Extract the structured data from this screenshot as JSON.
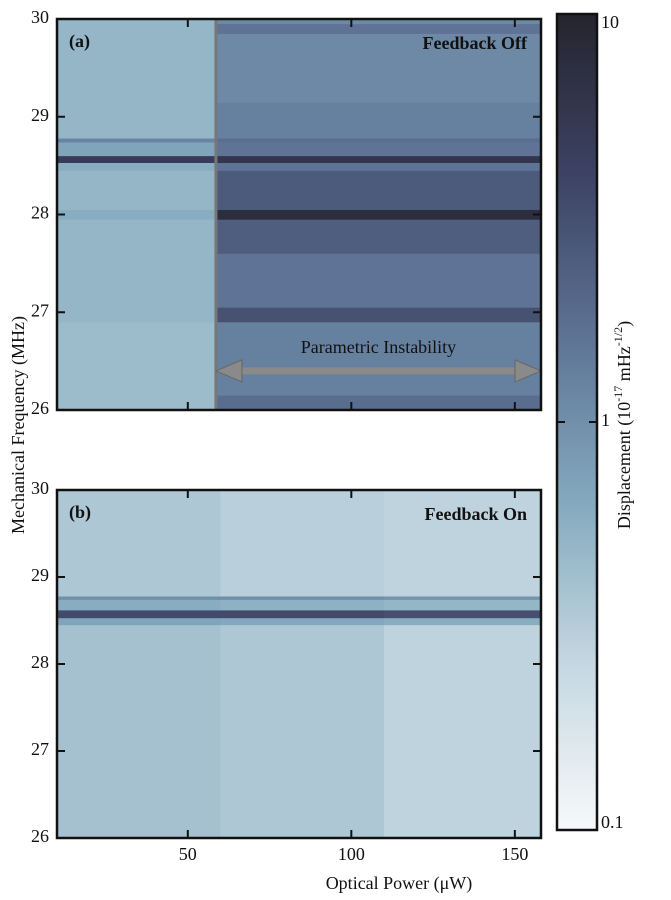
{
  "chart_data": {
    "type": "heatmap",
    "xlabel": "Optical Power (μW)",
    "ylabel": "Mechanical Frequency (MHz)",
    "xlim": [
      10,
      158
    ],
    "xticks": [
      50,
      100,
      150
    ],
    "ylim": [
      26,
      30
    ],
    "yticks": [
      26,
      27,
      28,
      29,
      30
    ],
    "colorbar": {
      "scale": "log",
      "clim": [
        0.1,
        10
      ],
      "ticks": [
        0.1,
        1,
        10
      ],
      "label": [
        "Displacement (10",
        "-17",
        " mHz",
        "-1/2",
        ")"
      ],
      "colormap": [
        "#f7f9fa",
        "#c6d8e2",
        "#84aabe",
        "#5e7496",
        "#3d4364",
        "#25242e"
      ]
    },
    "panels": [
      {
        "label": "(a)",
        "title": "Feedback Off",
        "marker_x": 58.6,
        "annotation": {
          "text": "Parametric Instability",
          "x_range": [
            58.6,
            158
          ],
          "y": 26.4
        },
        "x_edges": [
          10,
          58.6,
          158
        ],
        "y_edges": [
          26,
          26.15,
          26.9,
          27.05,
          27.6,
          27.95,
          28.05,
          28.45,
          28.53,
          28.6,
          28.74,
          28.78,
          29.15,
          29.85,
          29.95,
          30
        ],
        "z": [
          [
            0.45,
            1.8
          ],
          [
            0.45,
            1.3
          ],
          [
            0.5,
            3.0
          ],
          [
            0.5,
            1.6
          ],
          [
            0.5,
            2.4
          ],
          [
            0.6,
            7.5
          ],
          [
            0.5,
            2.6
          ],
          [
            0.6,
            1.6
          ],
          [
            5.0,
            6.0
          ],
          [
            0.7,
            1.6
          ],
          [
            1.2,
            1.8
          ],
          [
            0.5,
            1.3
          ],
          [
            0.5,
            1.1
          ],
          [
            0.5,
            1.6
          ],
          [
            0.5,
            1.1
          ]
        ]
      },
      {
        "label": "(b)",
        "title": "Feedback On",
        "x_edges": [
          10,
          60,
          110,
          158
        ],
        "y_edges": [
          26,
          28.45,
          28.53,
          28.62,
          28.74,
          28.78,
          30
        ],
        "z": [
          [
            0.4,
            0.35,
            0.28
          ],
          [
            0.7,
            0.65,
            0.6
          ],
          [
            3.5,
            3.5,
            3.2
          ],
          [
            0.6,
            0.55,
            0.5
          ],
          [
            1.0,
            1.0,
            0.9
          ],
          [
            0.35,
            0.3,
            0.28
          ]
        ]
      }
    ]
  }
}
